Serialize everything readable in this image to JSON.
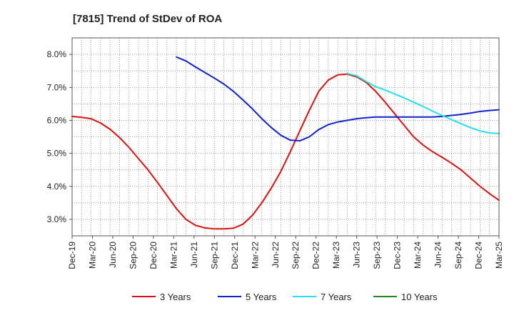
{
  "chart_data": {
    "type": "line",
    "title": "[7815]  Trend of StDev of ROA",
    "xlabel": "",
    "ylabel": "",
    "x_ticks": [
      "Dec-19",
      "Mar-20",
      "Jun-20",
      "Sep-20",
      "Dec-20",
      "Mar-21",
      "Jun-21",
      "Sep-21",
      "Dec-21",
      "Mar-22",
      "Jun-22",
      "Sep-22",
      "Dec-22",
      "Mar-23",
      "Jun-23",
      "Sep-23",
      "Dec-23",
      "Mar-24",
      "Jun-24",
      "Sep-24",
      "Dec-24",
      "Mar-25"
    ],
    "y_ticks": [
      "3.0%",
      "4.0%",
      "5.0%",
      "6.0%",
      "7.0%",
      "8.0%"
    ],
    "ylim": [
      2.5,
      8.5
    ],
    "grid": true,
    "legend_position": "bottom",
    "series": [
      {
        "name": "3 Years",
        "color": "#dd1111",
        "values": [
          6.12,
          6.09,
          6.05,
          5.92,
          5.73,
          5.48,
          5.18,
          4.84,
          4.5,
          4.12,
          3.72,
          3.32,
          3.0,
          2.82,
          2.74,
          2.71,
          2.71,
          2.73,
          2.85,
          3.12,
          3.5,
          3.95,
          4.45,
          5.05,
          5.68,
          6.3,
          6.88,
          7.22,
          7.38,
          7.4,
          7.32,
          7.15,
          6.88,
          6.55,
          6.2,
          5.85,
          5.5,
          5.25,
          5.05,
          4.88,
          4.7,
          4.5,
          4.25,
          4.0,
          3.78,
          3.58
        ]
      },
      {
        "name": "5 Years",
        "color": "#1122cc",
        "values": [
          null,
          null,
          null,
          null,
          null,
          null,
          null,
          null,
          null,
          null,
          null,
          7.92,
          7.8,
          7.62,
          7.45,
          7.28,
          7.1,
          6.88,
          6.62,
          6.35,
          6.05,
          5.78,
          5.55,
          5.4,
          5.38,
          5.5,
          5.72,
          5.87,
          5.95,
          6.0,
          6.05,
          6.08,
          6.1,
          6.1,
          6.1,
          6.1,
          6.1,
          6.1,
          6.1,
          6.12,
          6.15,
          6.18,
          6.22,
          6.27,
          6.3,
          6.32
        ]
      },
      {
        "name": "7 Years",
        "color": "#22e0ee",
        "values": [
          null,
          null,
          null,
          null,
          null,
          null,
          null,
          null,
          null,
          null,
          null,
          null,
          null,
          null,
          null,
          null,
          null,
          null,
          null,
          null,
          null,
          null,
          null,
          null,
          null,
          null,
          null,
          null,
          null,
          7.42,
          7.35,
          7.18,
          7.02,
          6.92,
          6.8,
          6.68,
          6.55,
          6.42,
          6.28,
          6.15,
          6.02,
          5.9,
          5.78,
          5.68,
          5.62,
          5.6
        ]
      },
      {
        "name": "10 Years",
        "color": "#228822",
        "values": []
      }
    ]
  }
}
